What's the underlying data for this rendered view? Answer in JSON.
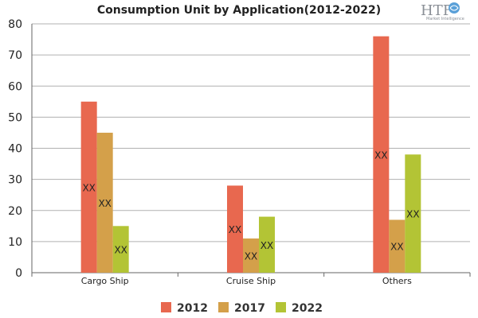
{
  "logo": {
    "text": "HTF",
    "subtext": "Market Intelligence"
  },
  "chart_data": {
    "type": "bar",
    "title": "Consumption Unit by  Application(2012-2022)",
    "xlabel": "",
    "ylabel": "",
    "categories": [
      "Cargo Ship",
      "Cruise Ship",
      "Others"
    ],
    "series": [
      {
        "name": "2012",
        "color": "#e8684f",
        "values": [
          55,
          28,
          76
        ],
        "labels": [
          "XX",
          "XX",
          "XX"
        ]
      },
      {
        "name": "2017",
        "color": "#d4a04a",
        "values": [
          45,
          11,
          17
        ],
        "labels": [
          "XX",
          "XX",
          "XX"
        ]
      },
      {
        "name": "2022",
        "color": "#b3c435",
        "values": [
          15,
          18,
          38
        ],
        "labels": [
          "XX",
          "XX",
          "XX"
        ]
      }
    ],
    "ylim": [
      0,
      80
    ],
    "yticks": [
      0,
      10,
      20,
      30,
      40,
      50,
      60,
      70,
      80
    ],
    "grid": true,
    "legend_position": "bottom"
  }
}
